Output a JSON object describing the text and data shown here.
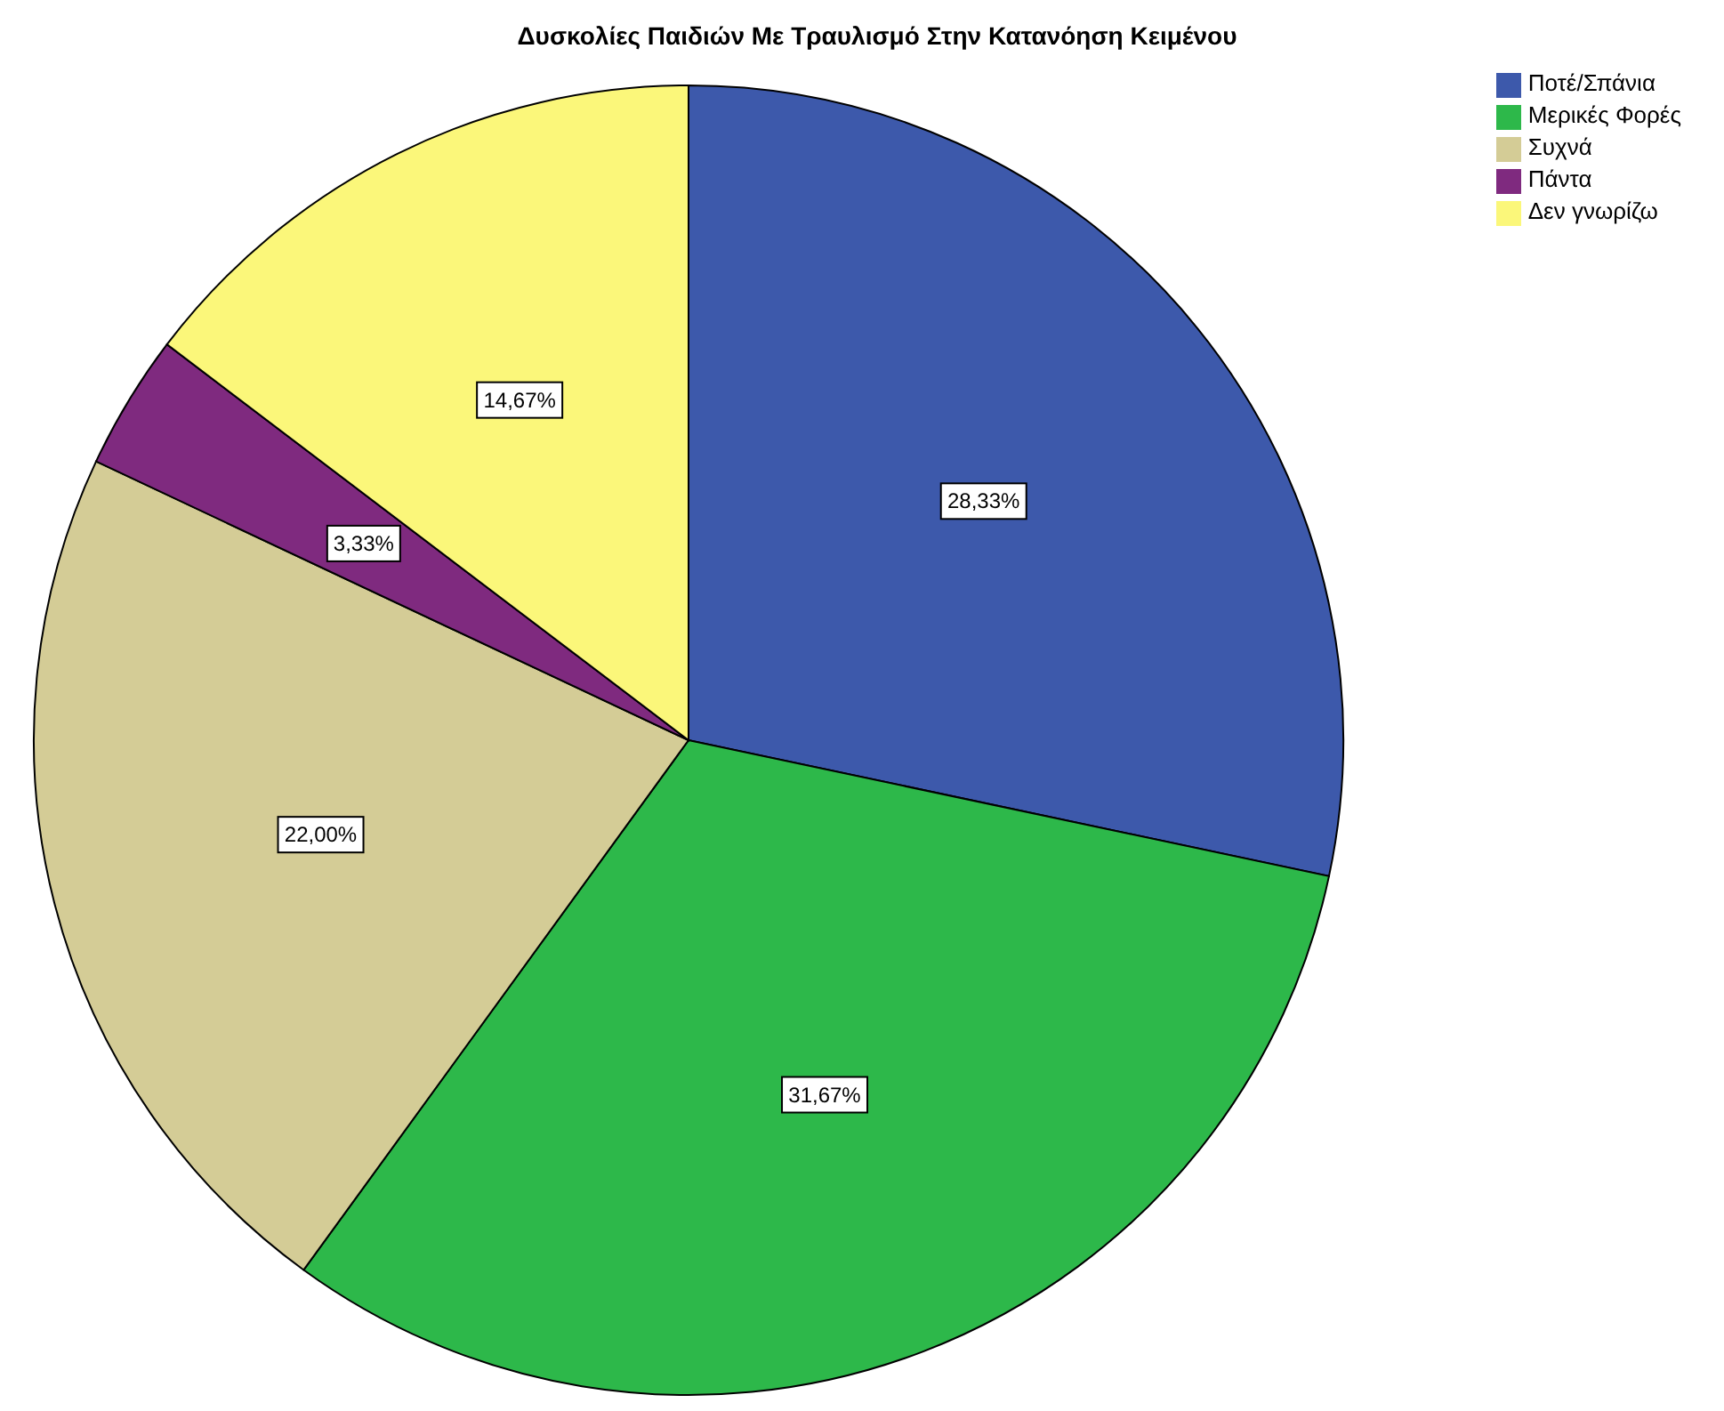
{
  "chart_data": {
    "type": "pie",
    "title": "Δυσκολίες Παιδιών Με Τραυλισμό Στην Κατανόηση Κειμένου",
    "categories": [
      "Ποτέ/Σπάνια",
      "Μερικές Φορές",
      "Συχνά",
      "Πάντα",
      "Δεν γνωρίζω"
    ],
    "values": [
      28.33,
      31.67,
      22.0,
      3.33,
      14.67
    ],
    "value_labels": [
      "28,33%",
      "31,67%",
      "22,00%",
      "3,33%",
      "14,67%"
    ],
    "colors": [
      "#3d59ab",
      "#2db84a",
      "#d4cc96",
      "#7f2a7f",
      "#fbf77a"
    ],
    "legend": "top right"
  }
}
